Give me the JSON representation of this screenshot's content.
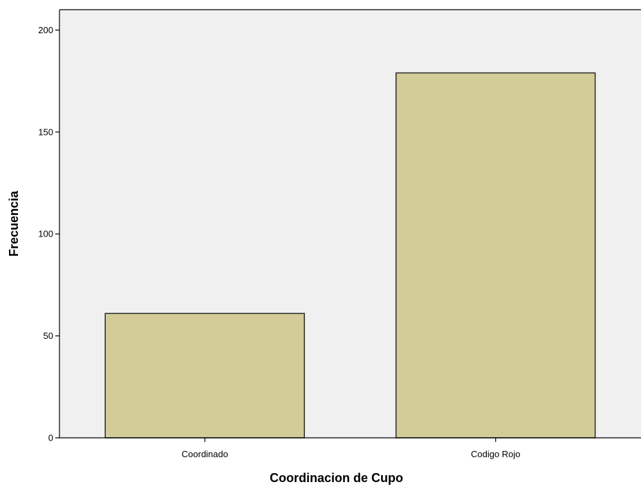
{
  "chart_data": {
    "type": "bar",
    "title": "",
    "xlabel": "Coordinacion de Cupo",
    "ylabel": "Frecuencia",
    "categories": [
      "Coordinado",
      "Codigo Rojo"
    ],
    "values": [
      61,
      179
    ],
    "ylim": [
      0,
      210
    ],
    "yticks": [
      0,
      50,
      100,
      150,
      200
    ],
    "grid": false,
    "legend": "none"
  },
  "colors": {
    "bar_fill": "#d3cc98",
    "bar_stroke": "#2b2b2b",
    "plot_background": "#f0f0f0",
    "axis": "#000000"
  }
}
